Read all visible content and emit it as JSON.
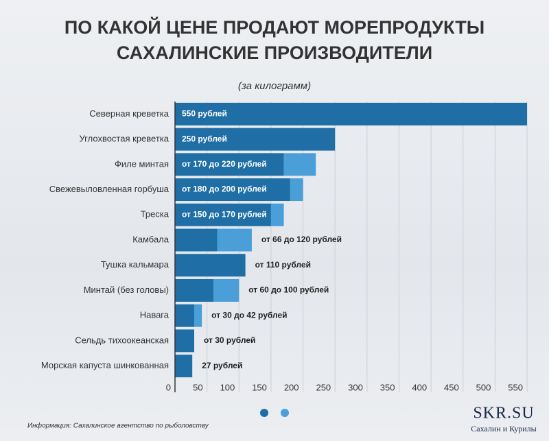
{
  "chart_data": {
    "type": "range_bar",
    "title": "ПО КАКОЙ ЦЕНЕ ПРОДАЮТ МОРЕПРОДУКТЫ",
    "title_line2": "САХАЛИНСКИЕ ПРОИЗВОДИТЕЛИ",
    "subtitle": "(за килограмм)",
    "source": "Информация: Сахалинское агентство по рыболовству",
    "categories": [
      "Северная креветка",
      "Углохвостая креветка",
      "Филе минтая",
      "Свежевыловленная горбуша",
      "Треска",
      "Камбала",
      "Тушка кальмара",
      "Минтай (без головы)",
      "Навага",
      "Сельдь тихоокеанская",
      "Морская капуста шинкованная"
    ],
    "series": [
      {
        "color": "#1f6ea6",
        "values": [
          550,
          250,
          170,
          180,
          150,
          66,
          110,
          60,
          30,
          30,
          27
        ],
        "value_labels": [
          "550 рублей",
          "250 рублей",
          "от 170 до 220 рублей",
          "от 180 до 200 рублей",
          "от 150 до 170 рублей",
          "от 66 до 120 рублей",
          "от 110 рублей",
          "от 60 до 100 рублей",
          "от 30 до 42 рублей",
          "от 30 рублей",
          "27 рублей"
        ]
      },
      {
        "color": "#4a9fd8",
        "values": [
          0,
          0,
          50,
          20,
          20,
          54,
          0,
          40,
          12,
          0,
          0
        ]
      }
    ],
    "xlim": [
      0,
      550
    ],
    "xticks": [
      0,
      50,
      100,
      150,
      200,
      250,
      300,
      350,
      400,
      450,
      500,
      550
    ],
    "grid": true
  },
  "brand": {
    "name": "SKR.SU",
    "tagline": "Сахалин и Курилы"
  }
}
